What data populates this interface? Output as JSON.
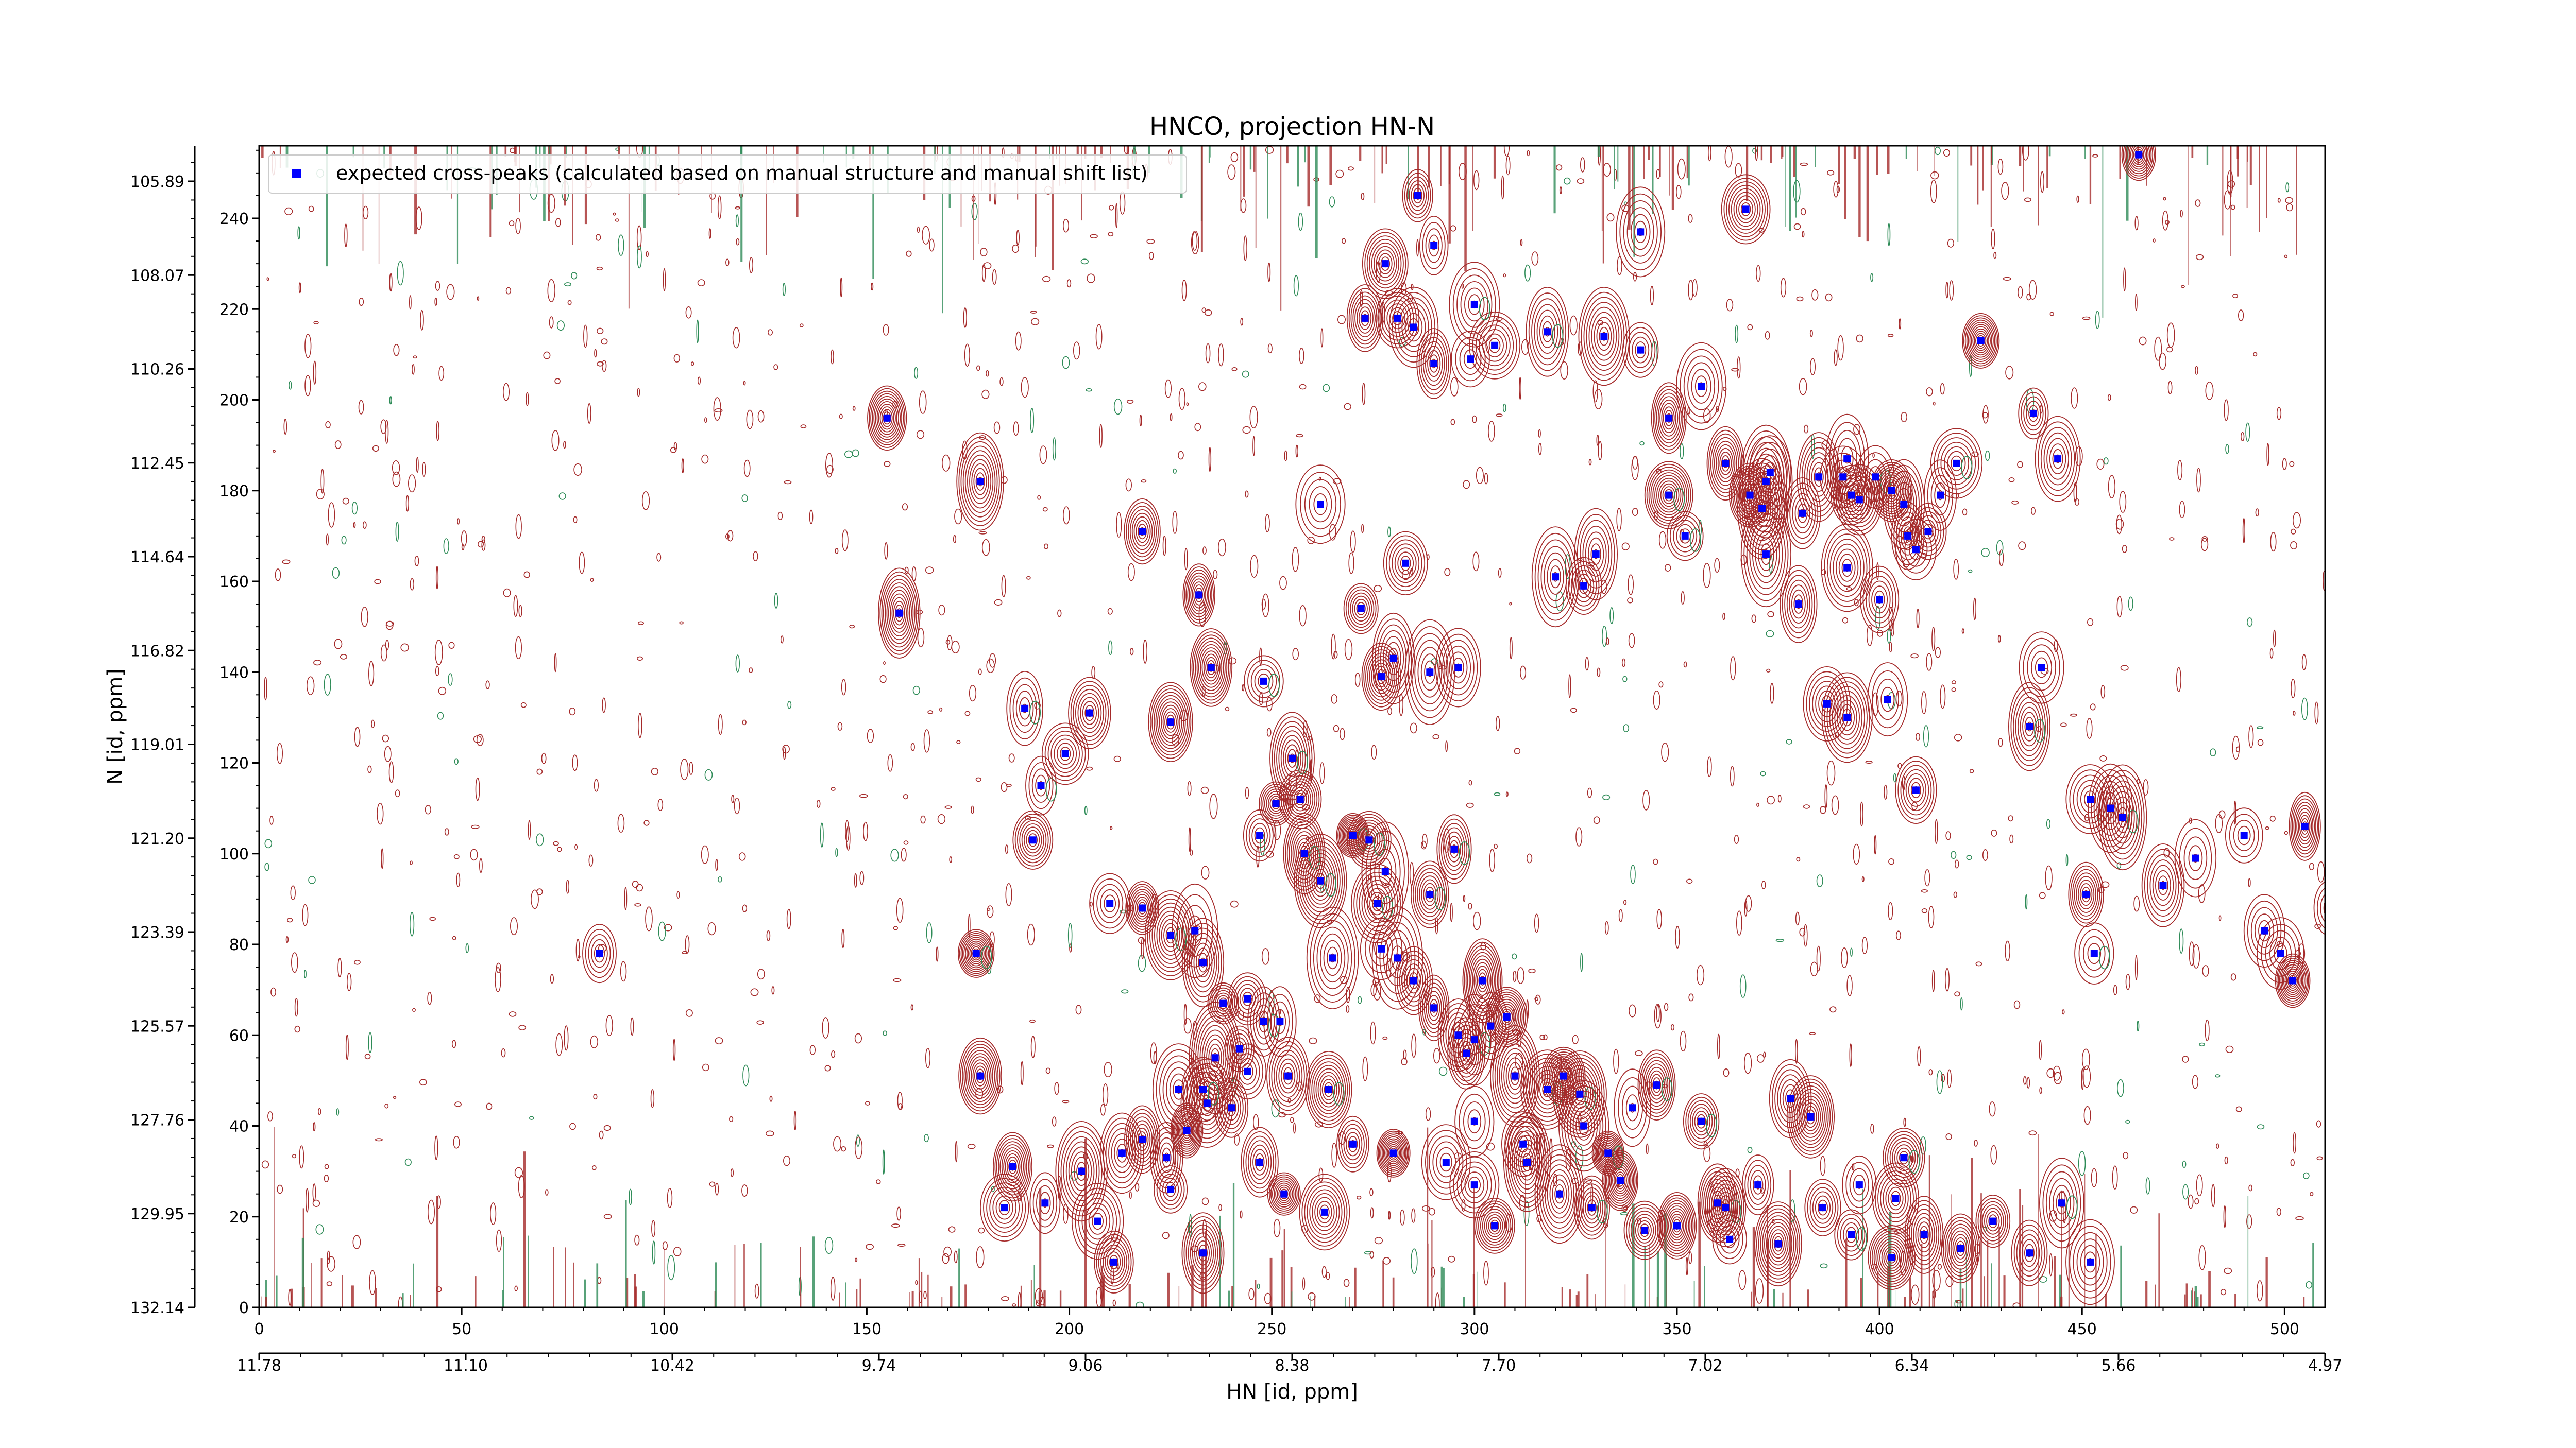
{
  "chart_data": {
    "type": "scatter",
    "title": "HNCO, projection HN-N",
    "xlabel": "HN [id, ppm]",
    "ylabel": "N [id, ppm]",
    "x_index_range": [
      0,
      510
    ],
    "y_index_range": [
      0,
      256
    ],
    "x_ticks": [
      0,
      50,
      100,
      150,
      200,
      250,
      300,
      350,
      400,
      450,
      500
    ],
    "y_ticks": [
      0,
      20,
      40,
      60,
      80,
      100,
      120,
      140,
      160,
      180,
      200,
      220,
      240
    ],
    "ppm_x_ticks": [
      "11.78",
      "11.10",
      "10.42",
      "9.74",
      "9.06",
      "8.38",
      "7.70",
      "7.02",
      "6.34",
      "5.66",
      "4.97"
    ],
    "ppm_y_ticks": [
      "132.14",
      "129.95",
      "127.76",
      "125.57",
      "123.39",
      "121.20",
      "119.01",
      "116.82",
      "114.64",
      "112.45",
      "110.26",
      "108.07",
      "105.89"
    ],
    "grid": false,
    "legend_placement": "top-left",
    "colors": {
      "positive_contours": "#a52a2a",
      "negative_contours": "#2e8b57",
      "peaks": "#0000ff"
    },
    "series": [
      {
        "name": "expected cross-peaks (calculated based on manual structure and manual shift list)",
        "points": [
          [
            84,
            78
          ],
          [
            155,
            196
          ],
          [
            158,
            153
          ],
          [
            178,
            182
          ],
          [
            189,
            132
          ],
          [
            205,
            131
          ],
          [
            218,
            171
          ],
          [
            225,
            129
          ],
          [
            232,
            157
          ],
          [
            235,
            141
          ],
          [
            248,
            138
          ],
          [
            262,
            177
          ],
          [
            272,
            154
          ],
          [
            277,
            139
          ],
          [
            283,
            164
          ],
          [
            280,
            143
          ],
          [
            289,
            140
          ],
          [
            296,
            141
          ],
          [
            320,
            161
          ],
          [
            327,
            159
          ],
          [
            330,
            166
          ],
          [
            348,
            179
          ],
          [
            352,
            170
          ],
          [
            368,
            179
          ],
          [
            371,
            176
          ],
          [
            373,
            184
          ],
          [
            385,
            183
          ],
          [
            391,
            183
          ],
          [
            392,
            187
          ],
          [
            393,
            179
          ],
          [
            395,
            178
          ],
          [
            399,
            183
          ],
          [
            403,
            180
          ],
          [
            406,
            177
          ],
          [
            407,
            170
          ],
          [
            409,
            167
          ],
          [
            412,
            171
          ],
          [
            415,
            179
          ],
          [
            419,
            186
          ],
          [
            392,
            130
          ],
          [
            402,
            134
          ],
          [
            425,
            213
          ],
          [
            438,
            197
          ],
          [
            444,
            187
          ],
          [
            464,
            254
          ],
          [
            367,
            242
          ],
          [
            255,
            121
          ],
          [
            273,
            218
          ],
          [
            281,
            218
          ],
          [
            285,
            216
          ],
          [
            278,
            230
          ],
          [
            290,
            234
          ],
          [
            286,
            245
          ],
          [
            290,
            208
          ],
          [
            305,
            212
          ],
          [
            299,
            209
          ],
          [
            300,
            221
          ],
          [
            318,
            215
          ],
          [
            332,
            214
          ],
          [
            341,
            237
          ],
          [
            341,
            211
          ],
          [
            348,
            196
          ],
          [
            356,
            203
          ],
          [
            362,
            186
          ],
          [
            372,
            182
          ],
          [
            372,
            166
          ],
          [
            380,
            155
          ],
          [
            381,
            175
          ],
          [
            387,
            133
          ],
          [
            392,
            163
          ],
          [
            400,
            156
          ],
          [
            409,
            114
          ],
          [
            437,
            128
          ],
          [
            440,
            141
          ],
          [
            452,
            112
          ],
          [
            460,
            108
          ],
          [
            451,
            91
          ],
          [
            457,
            110
          ],
          [
            470,
            93
          ],
          [
            478,
            99
          ],
          [
            490,
            104
          ],
          [
            495,
            83
          ],
          [
            502,
            72
          ],
          [
            499,
            78
          ],
          [
            511,
            88
          ],
          [
            453,
            78
          ],
          [
            505,
            106
          ],
          [
            177,
            78
          ],
          [
            191,
            103
          ],
          [
            193,
            115
          ],
          [
            199,
            122
          ],
          [
            210,
            89
          ],
          [
            218,
            88
          ],
          [
            225,
            82
          ],
          [
            231,
            83
          ],
          [
            233,
            76
          ],
          [
            238,
            67
          ],
          [
            244,
            68
          ],
          [
            247,
            104
          ],
          [
            251,
            111
          ],
          [
            257,
            112
          ],
          [
            258,
            100
          ],
          [
            262,
            94
          ],
          [
            265,
            77
          ],
          [
            270,
            104
          ],
          [
            274,
            103
          ],
          [
            276,
            89
          ],
          [
            277,
            79
          ],
          [
            278,
            96
          ],
          [
            281,
            77
          ],
          [
            285,
            72
          ],
          [
            289,
            91
          ],
          [
            290,
            66
          ],
          [
            295,
            101
          ],
          [
            302,
            72
          ],
          [
            300,
            59
          ],
          [
            304,
            62
          ],
          [
            308,
            64
          ],
          [
            296,
            60
          ],
          [
            298,
            56
          ],
          [
            310,
            51
          ],
          [
            318,
            48
          ],
          [
            322,
            51
          ],
          [
            326,
            47
          ],
          [
            300,
            41
          ],
          [
            312,
            36
          ],
          [
            327,
            40
          ],
          [
            333,
            34
          ],
          [
            339,
            44
          ],
          [
            345,
            49
          ],
          [
            356,
            41
          ],
          [
            362,
            22
          ],
          [
            378,
            46
          ],
          [
            383,
            42
          ],
          [
            395,
            27
          ],
          [
            404,
            24
          ],
          [
            406,
            33
          ],
          [
            225,
            26
          ],
          [
            229,
            39
          ],
          [
            234,
            45
          ],
          [
            236,
            55
          ],
          [
            240,
            44
          ],
          [
            242,
            57
          ],
          [
            248,
            63
          ],
          [
            252,
            63
          ],
          [
            203,
            30
          ],
          [
            213,
            34
          ],
          [
            218,
            37
          ],
          [
            224,
            33
          ],
          [
            227,
            48
          ],
          [
            233,
            48
          ],
          [
            178,
            51
          ],
          [
            184,
            22
          ],
          [
            186,
            31
          ],
          [
            194,
            23
          ],
          [
            207,
            19
          ],
          [
            211,
            10
          ],
          [
            233,
            12
          ],
          [
            244,
            52
          ],
          [
            254,
            51
          ],
          [
            264,
            48
          ],
          [
            270,
            36
          ],
          [
            247,
            32
          ],
          [
            253,
            25
          ],
          [
            263,
            21
          ],
          [
            280,
            34
          ],
          [
            293,
            32
          ],
          [
            300,
            27
          ],
          [
            305,
            18
          ],
          [
            313,
            32
          ],
          [
            321,
            25
          ],
          [
            329,
            22
          ],
          [
            336,
            28
          ],
          [
            342,
            17
          ],
          [
            350,
            18
          ],
          [
            360,
            23
          ],
          [
            363,
            15
          ],
          [
            370,
            27
          ],
          [
            375,
            14
          ],
          [
            386,
            22
          ],
          [
            393,
            16
          ],
          [
            403,
            11
          ],
          [
            411,
            16
          ],
          [
            420,
            13
          ],
          [
            428,
            19
          ],
          [
            437,
            12
          ],
          [
            445,
            23
          ],
          [
            452,
            10
          ]
        ]
      }
    ]
  }
}
